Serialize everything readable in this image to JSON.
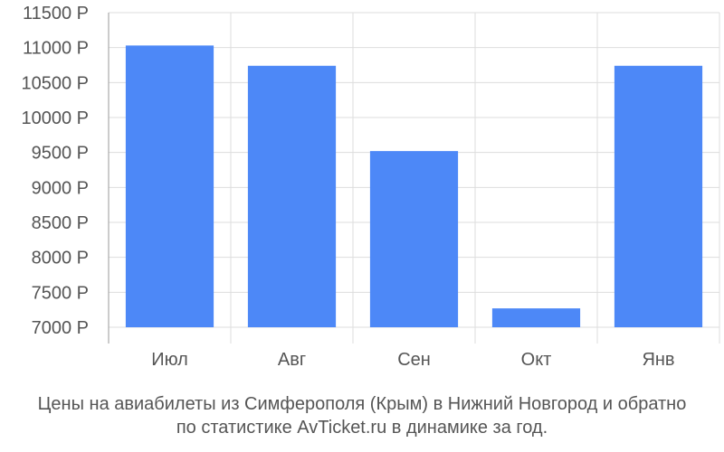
{
  "colors": {
    "bar": "#4d88f7",
    "grid": "#dddddd",
    "axis": "#999999",
    "text": "#555555"
  },
  "chart_data": {
    "type": "bar",
    "categories": [
      "Июл",
      "Авг",
      "Сен",
      "Окт",
      "Янв"
    ],
    "values": [
      11030,
      10740,
      9520,
      7270,
      10740
    ],
    "ylim": [
      7000,
      11500
    ],
    "yticks": [
      7000,
      7500,
      8000,
      8500,
      9000,
      9500,
      10000,
      10500,
      11000,
      11500
    ],
    "tick_suffix": " Р",
    "grid": true,
    "xlabel": "",
    "ylabel": ""
  },
  "caption": {
    "line1": "Цены на авиабилеты из Симферополя (Крым) в Нижний Новгород и обратно",
    "line2": "по статистике AvTicket.ru в динамике за год."
  }
}
